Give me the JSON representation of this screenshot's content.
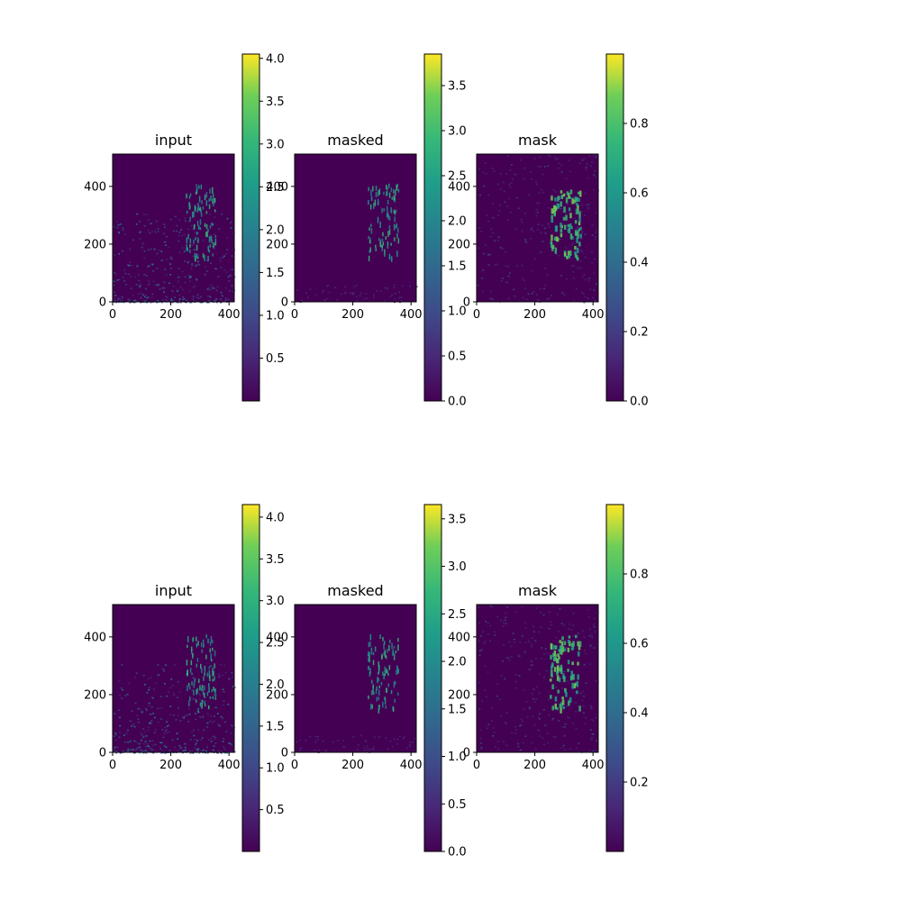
{
  "chart_data": [
    {
      "type": "heatmap",
      "title": "input",
      "xticks": [
        0,
        200,
        400
      ],
      "yticks": [
        0,
        200,
        400
      ],
      "xlim": [
        0,
        418
      ],
      "ylim": [
        0,
        512
      ],
      "colorbar": {
        "range": [
          0.0,
          4.05
        ],
        "ticks": [
          "0.5",
          "1.0",
          "1.5",
          "2.0",
          "2.5",
          "3.0",
          "3.5",
          "4.0"
        ],
        "tick_values": [
          0.5,
          1.0,
          1.5,
          2.0,
          2.5,
          3.0,
          3.5,
          4.0
        ]
      },
      "colormap": "viridis"
    },
    {
      "type": "heatmap",
      "title": "masked",
      "xticks": [
        0,
        200,
        400
      ],
      "yticks": [
        0,
        200,
        400
      ],
      "xlim": [
        0,
        418
      ],
      "ylim": [
        0,
        512
      ],
      "colorbar": {
        "range": [
          0.0,
          3.85
        ],
        "ticks": [
          "0.0",
          "0.5",
          "1.0",
          "1.5",
          "2.0",
          "2.5",
          "3.0",
          "3.5"
        ],
        "tick_values": [
          0.0,
          0.5,
          1.0,
          1.5,
          2.0,
          2.5,
          3.0,
          3.5
        ]
      },
      "colormap": "viridis"
    },
    {
      "type": "heatmap",
      "title": "mask",
      "xticks": [
        0,
        200,
        400
      ],
      "yticks": [
        0,
        200,
        400
      ],
      "xlim": [
        0,
        418
      ],
      "ylim": [
        0,
        512
      ],
      "colorbar": {
        "range": [
          0.0,
          1.0
        ],
        "ticks": [
          "0.0",
          "0.2",
          "0.4",
          "0.6",
          "0.8"
        ],
        "tick_values": [
          0.0,
          0.2,
          0.4,
          0.6,
          0.8
        ]
      },
      "colormap": "viridis"
    },
    {
      "type": "heatmap",
      "title": "input",
      "xticks": [
        0,
        200,
        400
      ],
      "yticks": [
        0,
        200,
        400
      ],
      "xlim": [
        0,
        418
      ],
      "ylim": [
        0,
        512
      ],
      "colorbar": {
        "range": [
          0.0,
          4.15
        ],
        "ticks": [
          "0.5",
          "1.0",
          "1.5",
          "2.0",
          "2.5",
          "3.0",
          "3.5",
          "4.0"
        ],
        "tick_values": [
          0.5,
          1.0,
          1.5,
          2.0,
          2.5,
          3.0,
          3.5,
          4.0
        ]
      },
      "colormap": "viridis"
    },
    {
      "type": "heatmap",
      "title": "masked",
      "xticks": [
        0,
        200,
        400
      ],
      "yticks": [
        0,
        200,
        400
      ],
      "xlim": [
        0,
        418
      ],
      "ylim": [
        0,
        512
      ],
      "colorbar": {
        "range": [
          0.0,
          3.65
        ],
        "ticks": [
          "0.0",
          "0.5",
          "1.0",
          "1.5",
          "2.0",
          "2.5",
          "3.0",
          "3.5"
        ],
        "tick_values": [
          0.0,
          0.5,
          1.0,
          1.5,
          2.0,
          2.5,
          3.0,
          3.5
        ]
      },
      "colormap": "viridis"
    },
    {
      "type": "heatmap",
      "title": "mask",
      "xticks": [
        0,
        200,
        400
      ],
      "yticks": [
        0,
        200,
        400
      ],
      "xlim": [
        0,
        418
      ],
      "ylim": [
        0,
        512
      ],
      "colorbar": {
        "range": [
          0.0,
          1.0
        ],
        "ticks": [
          "0.2",
          "0.4",
          "0.6",
          "0.8"
        ],
        "tick_values": [
          0.2,
          0.4,
          0.6,
          0.8
        ]
      },
      "colormap": "viridis"
    }
  ],
  "colors": {
    "viridis_low": "#440154",
    "viridis_mid": "#21918c",
    "viridis_high": "#fde725",
    "background": "#ffffff",
    "axis": "#000000"
  }
}
